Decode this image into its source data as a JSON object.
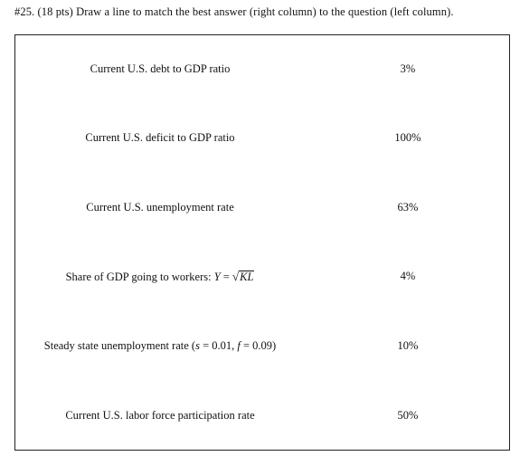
{
  "header": {
    "number": "#25.",
    "points": "(18 pts)",
    "instruction": "Draw a line to match the best answer (right column) to the question (left column)."
  },
  "questions": [
    {
      "text": "Current U.S. debt to GDP ratio",
      "answer": "3%"
    },
    {
      "text": "Current U.S. deficit to GDP ratio",
      "answer": "100%"
    },
    {
      "text": "Current U.S. unemployment rate",
      "answer": "63%"
    },
    {
      "text": "Share of GDP going to workers: ",
      "formula_lhs": "Y",
      "formula_eq": "=",
      "formula_radicand": "KL",
      "answer": "4%"
    },
    {
      "text": "Steady state unemployment rate (",
      "s_var": "s",
      "s_eq": "= 0.01,",
      "f_var": "f",
      "f_eq": "= 0.09)",
      "answer": "10%"
    },
    {
      "text": "Current U.S. labor force participation rate",
      "answer": "50%"
    }
  ]
}
